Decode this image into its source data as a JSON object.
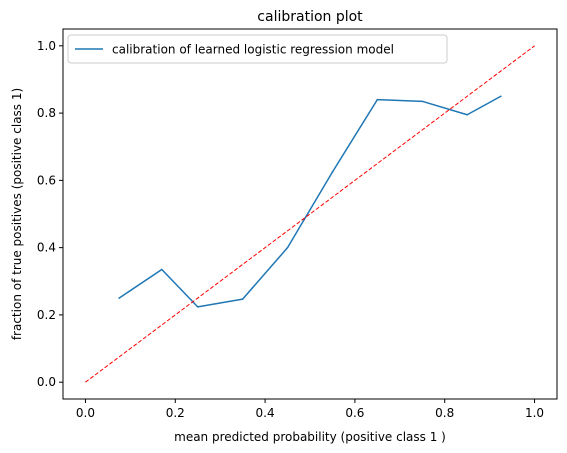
{
  "chart_data": {
    "type": "line",
    "title": "calibration plot",
    "xlabel": "mean predicted probability (positive class 1 )",
    "ylabel": "fraction of true positives (positive class 1)",
    "xlim": [
      -0.05,
      1.05
    ],
    "ylim": [
      -0.05,
      1.05
    ],
    "xticks": [
      0.0,
      0.2,
      0.4,
      0.6,
      0.8,
      1.0
    ],
    "xtick_labels": [
      "0.0",
      "0.2",
      "0.4",
      "0.6",
      "0.8",
      "1.0"
    ],
    "yticks": [
      0.0,
      0.2,
      0.4,
      0.6,
      0.8,
      1.0
    ],
    "ytick_labels": [
      "0.0",
      "0.2",
      "0.4",
      "0.6",
      "0.8",
      "1.0"
    ],
    "grid": false,
    "legend_position": "top-left",
    "series": [
      {
        "name": "calibration of learned logistic regression model",
        "color": "#1f77b4",
        "style": "solid",
        "x": [
          0.075,
          0.17,
          0.25,
          0.35,
          0.45,
          0.55,
          0.65,
          0.75,
          0.85,
          0.925
        ],
        "y": [
          0.25,
          0.335,
          0.224,
          0.247,
          0.4,
          0.625,
          0.84,
          0.835,
          0.795,
          0.85
        ]
      },
      {
        "color": "#ff0000",
        "style": "dashed",
        "x": [
          0.0,
          1.0
        ],
        "y": [
          0.0,
          1.0
        ]
      }
    ]
  }
}
